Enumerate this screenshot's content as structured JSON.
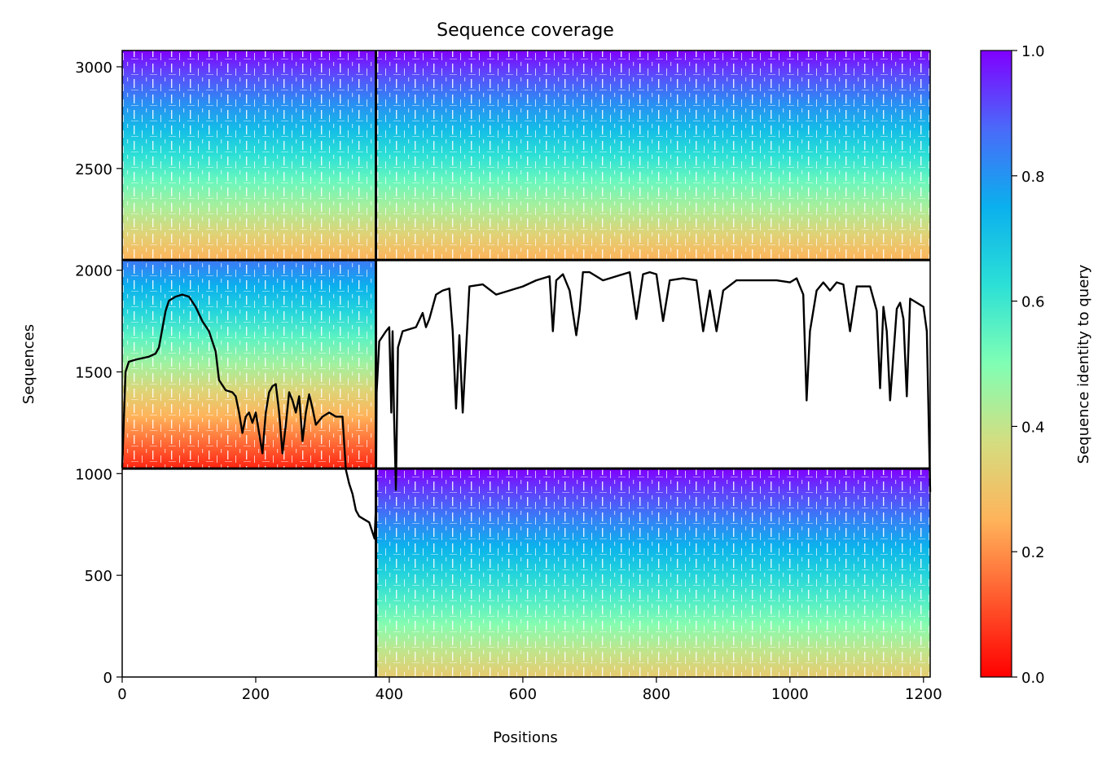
{
  "chart_data": {
    "type": "heatmap",
    "title": "Sequence coverage",
    "xlabel": "Positions",
    "ylabel": "Sequences",
    "xlim": [
      0,
      1210
    ],
    "ylim": [
      0,
      3080
    ],
    "xticks": [
      0,
      200,
      400,
      600,
      800,
      1000,
      1200
    ],
    "yticks": [
      0,
      500,
      1000,
      1500,
      2000,
      2500,
      3000
    ],
    "grid": false,
    "colorbar": {
      "label": "Sequence identity to query",
      "colormap": "rainbow",
      "min": 0.0,
      "max": 1.0,
      "ticks": [
        0.0,
        0.2,
        0.4,
        0.6,
        0.8,
        1.0
      ]
    },
    "blocks": [
      {
        "x": [
          0,
          380
        ],
        "y": [
          2050,
          3080
        ],
        "id_top": 1.0,
        "id_bottom": 0.25
      },
      {
        "x": [
          380,
          1210
        ],
        "y": [
          2050,
          3080
        ],
        "id_top": 1.0,
        "id_bottom": 0.25
      },
      {
        "x": [
          0,
          380
        ],
        "y": [
          1025,
          2050
        ],
        "id_top": 0.85,
        "id_bottom": 0.05
      },
      {
        "x": [
          380,
          1210
        ],
        "y": [
          0,
          1025
        ],
        "id_top": 1.0,
        "id_bottom": 0.32
      }
    ],
    "dividers": {
      "vertical_x": 380,
      "horizontal_y": [
        1025,
        2050
      ]
    },
    "coverage_line": {
      "x": [
        0,
        5,
        10,
        20,
        40,
        50,
        55,
        65,
        70,
        80,
        90,
        100,
        110,
        120,
        130,
        140,
        145,
        155,
        165,
        170,
        175,
        180,
        185,
        190,
        195,
        200,
        205,
        210,
        215,
        220,
        225,
        230,
        235,
        240,
        245,
        250,
        255,
        260,
        265,
        270,
        275,
        280,
        285,
        290,
        300,
        310,
        320,
        330,
        335,
        340,
        345,
        350,
        355,
        360,
        370,
        378,
        380,
        381,
        385,
        395,
        400,
        403,
        405,
        407,
        410,
        413,
        420,
        440,
        450,
        455,
        460,
        470,
        480,
        490,
        495,
        500,
        505,
        510,
        520,
        540,
        560,
        580,
        600,
        620,
        640,
        645,
        650,
        660,
        670,
        680,
        685,
        690,
        700,
        720,
        740,
        760,
        770,
        780,
        790,
        800,
        810,
        820,
        840,
        860,
        870,
        880,
        890,
        900,
        920,
        940,
        960,
        980,
        1000,
        1010,
        1020,
        1025,
        1030,
        1040,
        1050,
        1060,
        1070,
        1080,
        1090,
        1100,
        1110,
        1120,
        1130,
        1135,
        1140,
        1145,
        1150,
        1160,
        1165,
        1170,
        1175,
        1180,
        1190,
        1200,
        1205,
        1210
      ],
      "y": [
        1030,
        1500,
        1550,
        1560,
        1575,
        1590,
        1620,
        1800,
        1850,
        1870,
        1880,
        1870,
        1820,
        1750,
        1700,
        1600,
        1460,
        1410,
        1400,
        1380,
        1300,
        1200,
        1280,
        1300,
        1250,
        1300,
        1200,
        1100,
        1300,
        1400,
        1430,
        1440,
        1300,
        1100,
        1240,
        1400,
        1360,
        1300,
        1380,
        1160,
        1300,
        1390,
        1320,
        1240,
        1280,
        1300,
        1280,
        1280,
        1020,
        950,
        900,
        820,
        790,
        780,
        760,
        680,
        830,
        1400,
        1650,
        1700,
        1720,
        1300,
        1700,
        1300,
        920,
        1620,
        1700,
        1720,
        1790,
        1720,
        1760,
        1880,
        1900,
        1910,
        1700,
        1320,
        1680,
        1300,
        1920,
        1930,
        1880,
        1900,
        1920,
        1950,
        1970,
        1700,
        1950,
        1980,
        1900,
        1680,
        1800,
        1990,
        1990,
        1950,
        1970,
        1990,
        1760,
        1980,
        1990,
        1980,
        1750,
        1950,
        1960,
        1950,
        1700,
        1900,
        1700,
        1900,
        1950,
        1950,
        1950,
        1950,
        1940,
        1960,
        1880,
        1360,
        1700,
        1900,
        1940,
        1900,
        1940,
        1930,
        1700,
        1920,
        1920,
        1920,
        1800,
        1420,
        1820,
        1700,
        1360,
        1810,
        1840,
        1760,
        1380,
        1860,
        1840,
        1820,
        1700,
        910
      ]
    }
  }
}
